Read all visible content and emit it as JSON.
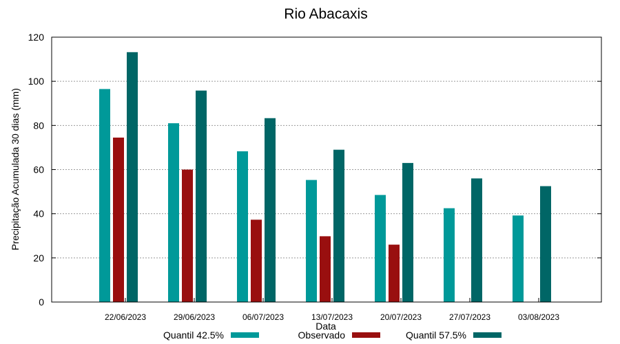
{
  "chart_data": {
    "type": "bar",
    "title": "Rio Abacaxis",
    "xlabel": "Data",
    "ylabel": "Precipitação Acumulada 30 dias (mm)",
    "ylim": [
      0,
      120
    ],
    "yticks": [
      "0",
      "20",
      "40",
      "60",
      "80",
      "100",
      "120"
    ],
    "categories": [
      "22/06/2023",
      "29/06/2023",
      "06/07/2023",
      "13/07/2023",
      "20/07/2023",
      "27/07/2023",
      "03/08/2023"
    ],
    "grid": true,
    "legend_position": "bottom",
    "series": [
      {
        "name": "Quantil 42.5%",
        "color": "#009999",
        "values": [
          96.5,
          81,
          68.3,
          55.3,
          48.5,
          42.5,
          39.2
        ]
      },
      {
        "name": "Observado",
        "color": "#990f0f",
        "values": [
          74.5,
          60,
          37.3,
          29.8,
          26,
          null,
          null
        ]
      },
      {
        "name": "Quantil 57.5%",
        "color": "#006666",
        "values": [
          113.2,
          95.8,
          83.3,
          69,
          63,
          56,
          52.5
        ]
      }
    ]
  }
}
